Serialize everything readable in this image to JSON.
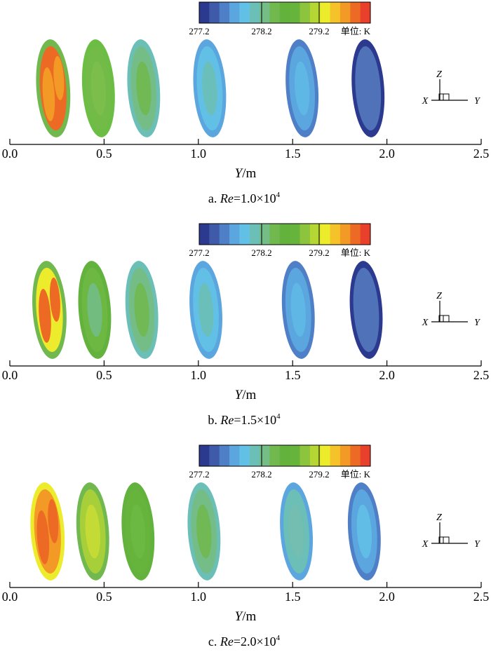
{
  "chart_data": {
    "type": "contour",
    "colorbar": {
      "colors": [
        "#2b3a8e",
        "#3f5aa8",
        "#4f7fc7",
        "#5ba6df",
        "#62c0e6",
        "#6cbfb6",
        "#74bd86",
        "#71b84f",
        "#64b23e",
        "#67b43d",
        "#8cc43d",
        "#b6d634",
        "#ecec2c",
        "#f6c22a",
        "#f39a26",
        "#ec6a24",
        "#e8402a"
      ],
      "tick_labels": [
        "277.2",
        "278.2",
        "279.2"
      ],
      "unit": "单位: K"
    },
    "coordinate_triad": {
      "z": "Z",
      "x": "X",
      "y": "Y"
    },
    "panels": [
      {
        "caption_prefix": "a. ",
        "caption_var": "Re",
        "caption_value": "=1.0×10",
        "caption_exp": "4",
        "xlabel_var": "Y",
        "xlabel_unit": "/m",
        "xlim": [
          0.0,
          2.5
        ],
        "x_ticks": [
          "0.0",
          "0.5",
          "1.0",
          "1.5",
          "2.0",
          "2.5"
        ],
        "sections": [
          {
            "y": 0.23,
            "outer": "#71b84f",
            "fill": "#ec6a24",
            "inner": "#f39a26"
          },
          {
            "y": 0.47,
            "outer": "#6cbd44",
            "fill": "#72bb48",
            "inner": "#7dbf4c"
          },
          {
            "y": 0.71,
            "outer": "#6cbfb6",
            "fill": "#74bd86",
            "inner": "#71b84f"
          },
          {
            "y": 1.06,
            "outer": "#5ba6df",
            "fill": "#62c0e6",
            "inner": "#6cbfb6"
          },
          {
            "y": 1.55,
            "outer": "#4f7fc7",
            "fill": "#5ba6df",
            "inner": "#5fb9e6"
          },
          {
            "y": 1.9,
            "outer": "#2b3a8e",
            "fill": "#4f72b8",
            "inner": "#4f72b8"
          }
        ]
      },
      {
        "caption_prefix": "b. ",
        "caption_var": "Re",
        "caption_value": "=1.5×10",
        "caption_exp": "4",
        "xlabel_var": "Y",
        "xlabel_unit": "/m",
        "xlim": [
          0.0,
          2.5
        ],
        "x_ticks": [
          "0.0",
          "0.5",
          "1.0",
          "1.5",
          "2.0",
          "2.5"
        ],
        "sections": [
          {
            "y": 0.21,
            "outer": "#71b84f",
            "fill": "#ecec2c",
            "inner": "#ec6a24"
          },
          {
            "y": 0.45,
            "outer": "#64b23e",
            "fill": "#6cb843",
            "inner": "#74bd86"
          },
          {
            "y": 0.7,
            "outer": "#6cbfb6",
            "fill": "#74bd86",
            "inner": "#71b84f"
          },
          {
            "y": 1.04,
            "outer": "#5ba6df",
            "fill": "#62c0e6",
            "inner": "#6cbfb6"
          },
          {
            "y": 1.53,
            "outer": "#4f7fc7",
            "fill": "#5ba6df",
            "inner": "#5fb9e6"
          },
          {
            "y": 1.89,
            "outer": "#2b3a8e",
            "fill": "#4f72b8",
            "inner": "#4f72b8"
          }
        ]
      },
      {
        "caption_prefix": "c. ",
        "caption_var": "Re",
        "caption_value": "=2.0×10",
        "caption_exp": "4",
        "xlabel_var": "Y",
        "xlabel_unit": "/m",
        "xlim": [
          0.0,
          2.5
        ],
        "x_ticks": [
          "0.0",
          "0.5",
          "1.0",
          "1.5",
          "2.0",
          "2.5"
        ],
        "sections": [
          {
            "y": 0.2,
            "outer": "#ecec2c",
            "fill": "#f39a26",
            "inner": "#ec6a24"
          },
          {
            "y": 0.44,
            "outer": "#71b84f",
            "fill": "#a7cf3a",
            "inner": "#c8dc36"
          },
          {
            "y": 0.68,
            "outer": "#64b23e",
            "fill": "#67b43d",
            "inner": "#6cb843"
          },
          {
            "y": 1.03,
            "outer": "#6cbfb6",
            "fill": "#74bd86",
            "inner": "#71b84f"
          },
          {
            "y": 1.52,
            "outer": "#5ba6df",
            "fill": "#6cbfb6",
            "inner": "#74bdb0"
          },
          {
            "y": 1.88,
            "outer": "#4f7fc7",
            "fill": "#5ba6df",
            "inner": "#62c0e6"
          }
        ]
      }
    ]
  }
}
